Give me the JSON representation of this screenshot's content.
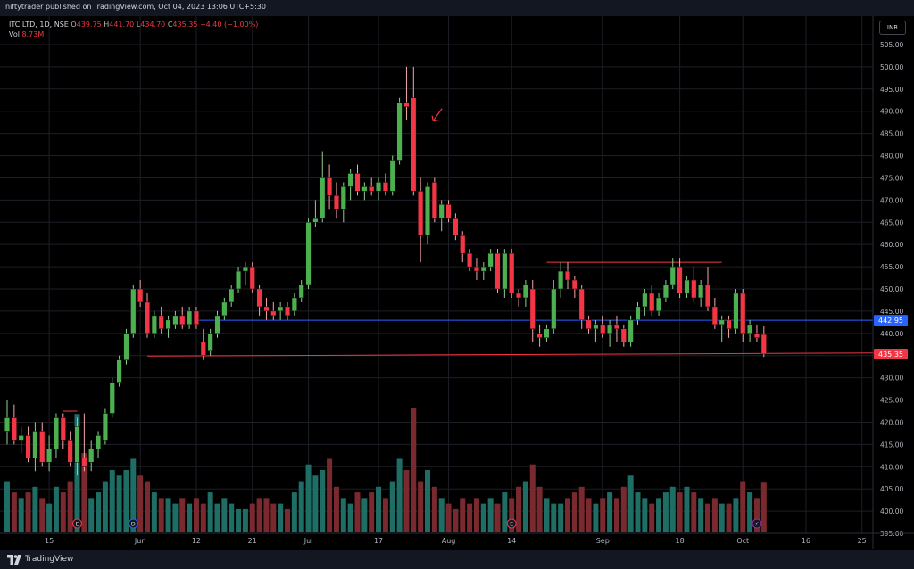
{
  "header": {
    "publisher_line": "niftytrader published on TradingView.com, Oct 04, 2023 13:06 UTC+5:30"
  },
  "legend": {
    "symbol": "ITC LTD, 1D, NSE",
    "open_label": "O",
    "open": "439.75",
    "high_label": "H",
    "high": "441.70",
    "low_label": "L",
    "low": "434.70",
    "close_label": "C",
    "close": "435.35",
    "change": "−4.40 (−1.00%)",
    "vol_label": "Vol",
    "vol": "8.73M"
  },
  "currency": "INR",
  "footer": {
    "brand": "TradingView"
  },
  "colors": {
    "up": "#26a69a",
    "down": "#ef5350",
    "candle_up": "#4caf50",
    "candle_down": "#f23645",
    "vol_up": "#1f6e66",
    "vol_down": "#7a2a2e",
    "blue_line": "#2962ff",
    "red_line": "#f23645"
  },
  "chart_data": {
    "type": "candlestick",
    "title": "ITC LTD, 1D, NSE",
    "ylim": [
      393,
      507
    ],
    "y_ticks": [
      "505.00",
      "500.00",
      "495.00",
      "490.00",
      "485.00",
      "480.00",
      "475.00",
      "470.00",
      "465.00",
      "460.00",
      "455.00",
      "450.00",
      "445.00",
      "440.00",
      "435.00",
      "430.00",
      "425.00",
      "420.00",
      "415.00",
      "410.00",
      "405.00",
      "400.00",
      "395.00"
    ],
    "x_ticks": [
      "15",
      "Jun",
      "12",
      "21",
      "Jul",
      "17",
      "Aug",
      "14",
      "Sep",
      "18",
      "Oct",
      "16",
      "25"
    ],
    "x_tick_bars": [
      6,
      19,
      27,
      35,
      43,
      53,
      63,
      72,
      85,
      96,
      105,
      114,
      122
    ],
    "price_labels": [
      {
        "text": "442.95",
        "value": 442.95,
        "kind": "blue"
      },
      {
        "text": "435.35",
        "value": 435.35,
        "kind": "red"
      }
    ],
    "horizontal_lines": [
      {
        "name": "support-line-blue",
        "value": 442.95,
        "from_bar": 27,
        "to_bar": 125,
        "color": "blue"
      }
    ],
    "trend_lines": [
      {
        "name": "support-trendline",
        "from": [
          20,
          434.9
        ],
        "to": [
          125,
          435.6
        ]
      },
      {
        "name": "resistance-trendline",
        "from": [
          77,
          456.0
        ],
        "to": [
          102,
          456.0
        ]
      },
      {
        "name": "may-high-marker",
        "from": [
          8,
          422.5
        ],
        "to": [
          10,
          422.5
        ]
      }
    ],
    "annotations": [
      {
        "name": "red-arrow",
        "bar": 59,
        "value": 489
      }
    ],
    "event_markers": [
      {
        "kind": "earnings",
        "bar": 10,
        "glyph": "E"
      },
      {
        "kind": "dividend",
        "bar": 18,
        "glyph": "D"
      },
      {
        "kind": "earnings",
        "bar": 72,
        "glyph": "E"
      },
      {
        "kind": "split",
        "bar": 107,
        "glyph": "⚡"
      }
    ],
    "vol_max": 22,
    "candles": [
      {
        "o": 418,
        "h": 425,
        "l": 415,
        "c": 421,
        "v": 9
      },
      {
        "o": 421,
        "h": 424,
        "l": 415,
        "c": 416,
        "v": 7
      },
      {
        "o": 416,
        "h": 419,
        "l": 413,
        "c": 417,
        "v": 6
      },
      {
        "o": 417,
        "h": 419,
        "l": 411,
        "c": 412,
        "v": 7
      },
      {
        "o": 412,
        "h": 420,
        "l": 409,
        "c": 418,
        "v": 8
      },
      {
        "o": 418,
        "h": 420,
        "l": 410,
        "c": 411,
        "v": 6
      },
      {
        "o": 411,
        "h": 417,
        "l": 409,
        "c": 414,
        "v": 5
      },
      {
        "o": 414,
        "h": 422,
        "l": 412,
        "c": 421,
        "v": 8
      },
      {
        "o": 421,
        "h": 422,
        "l": 414,
        "c": 416,
        "v": 7
      },
      {
        "o": 416,
        "h": 418,
        "l": 410,
        "c": 411,
        "v": 9
      },
      {
        "o": 411,
        "h": 421,
        "l": 408,
        "c": 419,
        "v": 21
      },
      {
        "o": 412,
        "h": 422,
        "l": 409,
        "c": 410,
        "v": 14
      },
      {
        "o": 411,
        "h": 416,
        "l": 409,
        "c": 414,
        "v": 6
      },
      {
        "o": 414,
        "h": 418,
        "l": 412,
        "c": 417,
        "v": 7
      },
      {
        "o": 416,
        "h": 423,
        "l": 415,
        "c": 422,
        "v": 9
      },
      {
        "o": 422,
        "h": 430,
        "l": 421,
        "c": 429,
        "v": 11
      },
      {
        "o": 429,
        "h": 435,
        "l": 428,
        "c": 434,
        "v": 10
      },
      {
        "o": 434,
        "h": 441,
        "l": 433,
        "c": 440,
        "v": 11
      },
      {
        "o": 440,
        "h": 451,
        "l": 439,
        "c": 450,
        "v": 13
      },
      {
        "o": 450,
        "h": 452,
        "l": 446,
        "c": 447,
        "v": 10
      },
      {
        "o": 447,
        "h": 449,
        "l": 439,
        "c": 440,
        "v": 9
      },
      {
        "o": 440,
        "h": 445,
        "l": 439,
        "c": 444,
        "v": 7
      },
      {
        "o": 444,
        "h": 446,
        "l": 440,
        "c": 441,
        "v": 6
      },
      {
        "o": 441,
        "h": 444,
        "l": 439,
        "c": 443,
        "v": 6
      },
      {
        "o": 442,
        "h": 445,
        "l": 441,
        "c": 444,
        "v": 5
      },
      {
        "o": 444,
        "h": 446,
        "l": 441,
        "c": 442,
        "v": 6
      },
      {
        "o": 442,
        "h": 446,
        "l": 441,
        "c": 445,
        "v": 5
      },
      {
        "o": 445,
        "h": 446,
        "l": 441,
        "c": 442,
        "v": 6
      },
      {
        "o": 438,
        "h": 441,
        "l": 434,
        "c": 435,
        "v": 5
      },
      {
        "o": 436,
        "h": 441,
        "l": 435,
        "c": 440,
        "v": 7
      },
      {
        "o": 440,
        "h": 445,
        "l": 439,
        "c": 444,
        "v": 5
      },
      {
        "o": 444,
        "h": 448,
        "l": 443,
        "c": 447,
        "v": 6
      },
      {
        "o": 447,
        "h": 451,
        "l": 446,
        "c": 450,
        "v": 5
      },
      {
        "o": 450,
        "h": 455,
        "l": 449,
        "c": 454,
        "v": 4
      },
      {
        "o": 454,
        "h": 456,
        "l": 451,
        "c": 455,
        "v": 4
      },
      {
        "o": 455,
        "h": 456,
        "l": 449,
        "c": 450,
        "v": 5
      },
      {
        "o": 450,
        "h": 451,
        "l": 444,
        "c": 446,
        "v": 6
      },
      {
        "o": 446,
        "h": 448,
        "l": 443,
        "c": 445,
        "v": 6
      },
      {
        "o": 445,
        "h": 447,
        "l": 443,
        "c": 444,
        "v": 5
      },
      {
        "o": 445,
        "h": 447,
        "l": 443,
        "c": 446,
        "v": 5
      },
      {
        "o": 446,
        "h": 447,
        "l": 443,
        "c": 444,
        "v": 4
      },
      {
        "o": 445,
        "h": 449,
        "l": 444,
        "c": 448,
        "v": 7
      },
      {
        "o": 448,
        "h": 452,
        "l": 447,
        "c": 451,
        "v": 9
      },
      {
        "o": 451,
        "h": 466,
        "l": 450,
        "c": 465,
        "v": 12
      },
      {
        "o": 465,
        "h": 470,
        "l": 464,
        "c": 466,
        "v": 10
      },
      {
        "o": 466,
        "h": 481,
        "l": 465,
        "c": 475,
        "v": 11
      },
      {
        "o": 475,
        "h": 478,
        "l": 468,
        "c": 471,
        "v": 13
      },
      {
        "o": 471,
        "h": 474,
        "l": 466,
        "c": 468,
        "v": 8
      },
      {
        "o": 468,
        "h": 474,
        "l": 465,
        "c": 473,
        "v": 6
      },
      {
        "o": 473,
        "h": 477,
        "l": 470,
        "c": 476,
        "v": 5
      },
      {
        "o": 476,
        "h": 478,
        "l": 471,
        "c": 472,
        "v": 7
      },
      {
        "o": 472,
        "h": 474,
        "l": 470,
        "c": 473,
        "v": 6
      },
      {
        "o": 473,
        "h": 475,
        "l": 471,
        "c": 472,
        "v": 7
      },
      {
        "o": 472,
        "h": 475,
        "l": 470,
        "c": 474,
        "v": 8
      },
      {
        "o": 474,
        "h": 476,
        "l": 471,
        "c": 472,
        "v": 6
      },
      {
        "o": 472,
        "h": 480,
        "l": 471,
        "c": 479,
        "v": 9
      },
      {
        "o": 479,
        "h": 493,
        "l": 478,
        "c": 492,
        "v": 13
      },
      {
        "o": 492,
        "h": 500,
        "l": 488,
        "c": 491,
        "v": 11
      },
      {
        "o": 493,
        "h": 500,
        "l": 471,
        "c": 472,
        "v": 22
      },
      {
        "o": 472,
        "h": 475,
        "l": 456,
        "c": 462,
        "v": 9
      },
      {
        "o": 462,
        "h": 474,
        "l": 460,
        "c": 473,
        "v": 11
      },
      {
        "o": 474,
        "h": 475,
        "l": 465,
        "c": 466,
        "v": 8
      },
      {
        "o": 466,
        "h": 470,
        "l": 463,
        "c": 469,
        "v": 6
      },
      {
        "o": 469,
        "h": 470,
        "l": 465,
        "c": 466,
        "v": 5
      },
      {
        "o": 466,
        "h": 467,
        "l": 461,
        "c": 462,
        "v": 4
      },
      {
        "o": 462,
        "h": 463,
        "l": 456,
        "c": 458,
        "v": 6
      },
      {
        "o": 458,
        "h": 459,
        "l": 454,
        "c": 455,
        "v": 5
      },
      {
        "o": 455,
        "h": 457,
        "l": 452,
        "c": 454,
        "v": 6
      },
      {
        "o": 454,
        "h": 456,
        "l": 452,
        "c": 455,
        "v": 5
      },
      {
        "o": 455,
        "h": 459,
        "l": 454,
        "c": 458,
        "v": 6
      },
      {
        "o": 458,
        "h": 459,
        "l": 449,
        "c": 450,
        "v": 5
      },
      {
        "o": 450,
        "h": 459,
        "l": 448,
        "c": 458,
        "v": 7
      },
      {
        "o": 458,
        "h": 459,
        "l": 448,
        "c": 449,
        "v": 6
      },
      {
        "o": 449,
        "h": 450,
        "l": 446,
        "c": 448,
        "v": 8
      },
      {
        "o": 448,
        "h": 452,
        "l": 446,
        "c": 451,
        "v": 9
      },
      {
        "o": 450,
        "h": 452,
        "l": 438,
        "c": 441,
        "v": 12
      },
      {
        "o": 440,
        "h": 442,
        "l": 437,
        "c": 439,
        "v": 8
      },
      {
        "o": 439,
        "h": 442,
        "l": 438,
        "c": 441,
        "v": 6
      },
      {
        "o": 441,
        "h": 452,
        "l": 440,
        "c": 450,
        "v": 5
      },
      {
        "o": 450,
        "h": 456,
        "l": 448,
        "c": 454,
        "v": 5
      },
      {
        "o": 454,
        "h": 456,
        "l": 450,
        "c": 452,
        "v": 6
      },
      {
        "o": 452,
        "h": 453,
        "l": 448,
        "c": 450,
        "v": 7
      },
      {
        "o": 450,
        "h": 451,
        "l": 441,
        "c": 443,
        "v": 8
      },
      {
        "o": 443,
        "h": 444,
        "l": 440,
        "c": 441,
        "v": 6
      },
      {
        "o": 441,
        "h": 443,
        "l": 438,
        "c": 442,
        "v": 5
      },
      {
        "o": 442,
        "h": 444,
        "l": 439,
        "c": 440,
        "v": 6
      },
      {
        "o": 440,
        "h": 443,
        "l": 437,
        "c": 442,
        "v": 7
      },
      {
        "o": 442,
        "h": 444,
        "l": 438,
        "c": 441,
        "v": 6
      },
      {
        "o": 441,
        "h": 442,
        "l": 437,
        "c": 438,
        "v": 8
      },
      {
        "o": 438,
        "h": 444,
        "l": 437,
        "c": 443,
        "v": 10
      },
      {
        "o": 443,
        "h": 447,
        "l": 442,
        "c": 446,
        "v": 7
      },
      {
        "o": 446,
        "h": 450,
        "l": 444,
        "c": 449,
        "v": 6
      },
      {
        "o": 449,
        "h": 451,
        "l": 444,
        "c": 445,
        "v": 5
      },
      {
        "o": 445,
        "h": 449,
        "l": 444,
        "c": 448,
        "v": 6
      },
      {
        "o": 448,
        "h": 452,
        "l": 447,
        "c": 451,
        "v": 7
      },
      {
        "o": 451,
        "h": 457,
        "l": 450,
        "c": 455,
        "v": 8
      },
      {
        "o": 455,
        "h": 457,
        "l": 448,
        "c": 449,
        "v": 7
      },
      {
        "o": 449,
        "h": 453,
        "l": 448,
        "c": 452,
        "v": 8
      },
      {
        "o": 452,
        "h": 455,
        "l": 447,
        "c": 448,
        "v": 7
      },
      {
        "o": 448,
        "h": 452,
        "l": 446,
        "c": 451,
        "v": 6
      },
      {
        "o": 451,
        "h": 455,
        "l": 445,
        "c": 446,
        "v": 5
      },
      {
        "o": 446,
        "h": 448,
        "l": 441,
        "c": 442,
        "v": 6
      },
      {
        "o": 442,
        "h": 444,
        "l": 438,
        "c": 443,
        "v": 5
      },
      {
        "o": 443,
        "h": 444,
        "l": 439,
        "c": 441,
        "v": 5
      },
      {
        "o": 441,
        "h": 450,
        "l": 440,
        "c": 449,
        "v": 6
      },
      {
        "o": 449,
        "h": 450,
        "l": 438,
        "c": 440,
        "v": 9
      },
      {
        "o": 440,
        "h": 443,
        "l": 438,
        "c": 442,
        "v": 7
      },
      {
        "o": 440,
        "h": 442,
        "l": 438,
        "c": 439,
        "v": 6
      },
      {
        "o": 439.75,
        "h": 441.7,
        "l": 434.7,
        "c": 435.35,
        "v": 8.73
      }
    ]
  }
}
